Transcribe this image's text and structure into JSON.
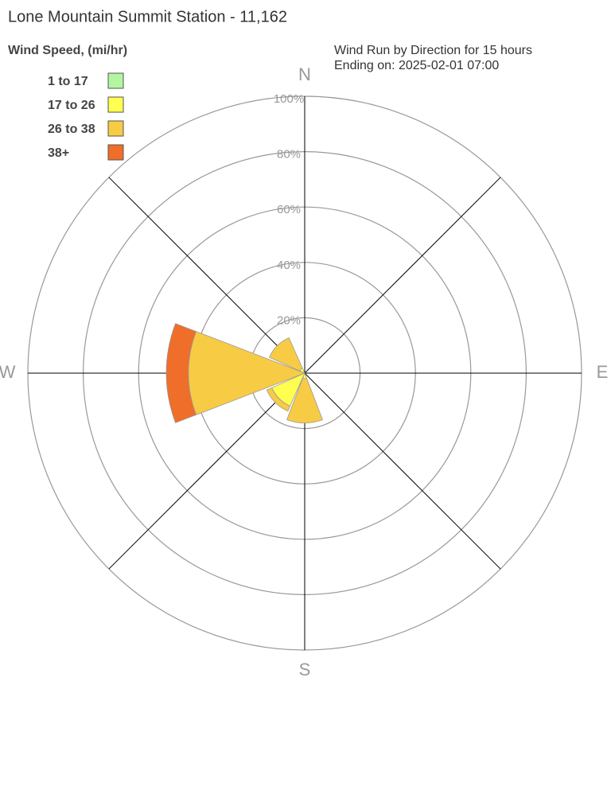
{
  "chart_data": {
    "type": "windrose",
    "title": "Lone Mountain Summit Station - 11,162",
    "legend_title": "Wind Speed, (mi/hr)",
    "subtitle": [
      "Wind Run by Direction for 15 hours",
      "Ending on: 2025-02-01 07:00"
    ],
    "categories": [
      "N",
      null,
      "E",
      null,
      "S",
      null,
      "W",
      null
    ],
    "series": [
      {
        "name": "1 to 17",
        "color": "#b3f5a0",
        "values": [
          0,
          0,
          0,
          0,
          0,
          0,
          0,
          0
        ]
      },
      {
        "name": "17 to 26",
        "color": "#ffff50",
        "values": [
          0,
          0,
          0,
          0,
          2,
          13,
          0,
          2
        ]
      },
      {
        "name": "26 to 38",
        "color": "#f8cb45",
        "values": [
          0,
          0,
          0,
          0,
          16,
          2,
          42,
          12
        ]
      },
      {
        "name": "38+",
        "color": "#ef6e2a",
        "values": [
          0,
          0,
          0,
          0,
          0,
          0,
          8,
          0
        ]
      }
    ],
    "rlim": [
      0,
      100
    ],
    "rticks": [
      {
        "value": 20,
        "label": "20%"
      },
      {
        "value": 40,
        "label": "40%"
      },
      {
        "value": 60,
        "label": "60%"
      },
      {
        "value": 80,
        "label": "80%"
      },
      {
        "value": 100,
        "label": "100%"
      }
    ],
    "grid": true,
    "legend": "upper left"
  }
}
